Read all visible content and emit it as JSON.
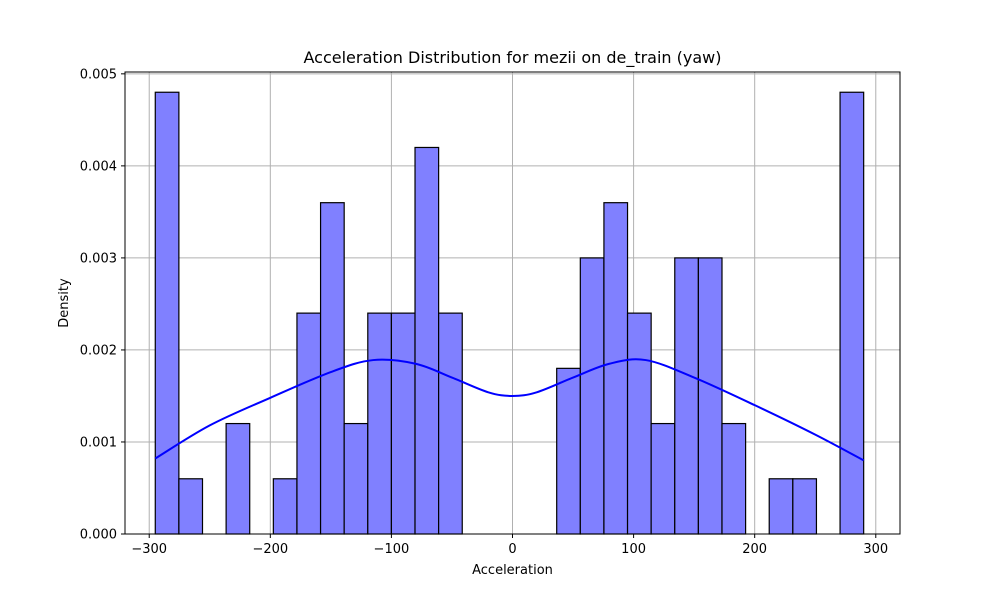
{
  "chart_data": {
    "type": "bar",
    "title": "Acceleration Distribution for mezii on de_train (yaw)",
    "xlabel": "Acceleration",
    "ylabel": "Density",
    "xlim": [
      -320,
      320
    ],
    "ylim": [
      0,
      0.00502
    ],
    "xticks": [
      -300,
      -200,
      -100,
      0,
      100,
      200,
      300
    ],
    "xtick_labels": [
      "−300",
      "−200",
      "−100",
      "0",
      "100",
      "200",
      "300"
    ],
    "yticks": [
      0,
      0.001,
      0.002,
      0.003,
      0.004,
      0.005
    ],
    "ytick_labels": [
      "0.000",
      "0.001",
      "0.002",
      "0.003",
      "0.004",
      "0.005"
    ],
    "grid": true,
    "bar_color": "#8080ff",
    "bar_edge_color": "#000000",
    "bins": [
      {
        "x0": -295,
        "x1": -275.5,
        "density": 0.0048
      },
      {
        "x0": -275.5,
        "x1": -256,
        "density": 0.0006
      },
      {
        "x0": -256,
        "x1": -236.5,
        "density": 0
      },
      {
        "x0": -236.5,
        "x1": -217,
        "density": 0.0012
      },
      {
        "x0": -217,
        "x1": -197.5,
        "density": 0
      },
      {
        "x0": -197.5,
        "x1": -178,
        "density": 0.0006
      },
      {
        "x0": -178,
        "x1": -158.5,
        "density": 0.0024
      },
      {
        "x0": -158.5,
        "x1": -139,
        "density": 0.0036
      },
      {
        "x0": -139,
        "x1": -119.5,
        "density": 0.0012
      },
      {
        "x0": -119.5,
        "x1": -100,
        "density": 0.0024
      },
      {
        "x0": -100,
        "x1": -80.5,
        "density": 0.0024
      },
      {
        "x0": -80.5,
        "x1": -61,
        "density": 0.0042
      },
      {
        "x0": -61,
        "x1": -41.5,
        "density": 0.0024
      },
      {
        "x0": -41.5,
        "x1": -22,
        "density": 0
      },
      {
        "x0": -22,
        "x1": -2.5,
        "density": 0
      },
      {
        "x0": -2.5,
        "x1": 17,
        "density": 0
      },
      {
        "x0": 17,
        "x1": 36.5,
        "density": 0
      },
      {
        "x0": 36.5,
        "x1": 56,
        "density": 0.0018
      },
      {
        "x0": 56,
        "x1": 75.5,
        "density": 0.003
      },
      {
        "x0": 75.5,
        "x1": 95,
        "density": 0.0036
      },
      {
        "x0": 95,
        "x1": 114.5,
        "density": 0.0024
      },
      {
        "x0": 114.5,
        "x1": 134,
        "density": 0.0012
      },
      {
        "x0": 134,
        "x1": 153.5,
        "density": 0.003
      },
      {
        "x0": 153.5,
        "x1": 173,
        "density": 0.003
      },
      {
        "x0": 173,
        "x1": 192.5,
        "density": 0.0012
      },
      {
        "x0": 192.5,
        "x1": 212,
        "density": 0
      },
      {
        "x0": 212,
        "x1": 231.5,
        "density": 0.0006
      },
      {
        "x0": 231.5,
        "x1": 251,
        "density": 0.0006
      },
      {
        "x0": 251,
        "x1": 270.5,
        "density": 0
      },
      {
        "x0": 270.5,
        "x1": 290,
        "density": 0.0048
      }
    ],
    "series": [
      {
        "type": "line",
        "color": "#0000ff",
        "x": [
          -295,
          -250,
          -200,
          -150,
          -115,
          -80,
          -50,
          -20,
          0,
          20,
          50,
          80,
          110,
          150,
          200,
          250,
          290
        ],
        "y": [
          0.00082,
          0.00118,
          0.00148,
          0.00176,
          0.00189,
          0.00185,
          0.0017,
          0.00154,
          0.0015,
          0.00154,
          0.0017,
          0.00185,
          0.00189,
          0.0017,
          0.0014,
          0.00108,
          0.0008
        ]
      }
    ]
  }
}
